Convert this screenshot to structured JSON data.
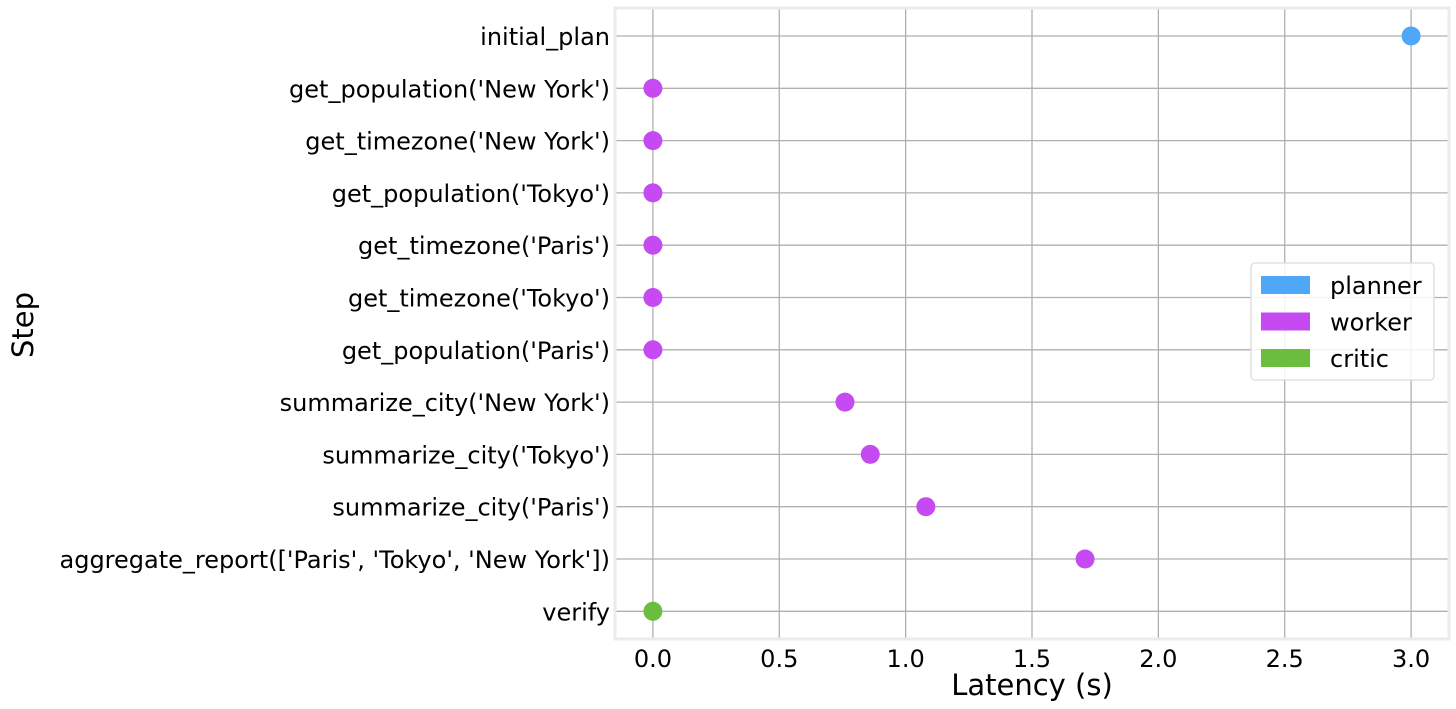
{
  "chart_data": {
    "type": "scatter",
    "xlabel": "Latency (s)",
    "ylabel": "Step",
    "xlim": [
      -0.15,
      3.15
    ],
    "xticks": [
      0.0,
      0.5,
      1.0,
      1.5,
      2.0,
      2.5,
      3.0
    ],
    "xtick_labels": [
      "0.0",
      "0.5",
      "1.0",
      "1.5",
      "2.0",
      "2.5",
      "3.0"
    ],
    "grid": true,
    "legend_position": "center-right",
    "series": [
      {
        "name": "planner",
        "color": "#4EA8F7"
      },
      {
        "name": "worker",
        "color": "#C64AF2"
      },
      {
        "name": "critic",
        "color": "#6ABD3F"
      }
    ],
    "points": [
      {
        "step": "initial_plan",
        "latency": 3.0,
        "series": "planner"
      },
      {
        "step": "get_population('New York')",
        "latency": 0.0,
        "series": "worker"
      },
      {
        "step": "get_timezone('New York')",
        "latency": 0.0,
        "series": "worker"
      },
      {
        "step": "get_population('Tokyo')",
        "latency": 0.0,
        "series": "worker"
      },
      {
        "step": "get_timezone('Paris')",
        "latency": 0.0,
        "series": "worker"
      },
      {
        "step": "get_timezone('Tokyo')",
        "latency": 0.0,
        "series": "worker"
      },
      {
        "step": "get_population('Paris')",
        "latency": 0.0,
        "series": "worker"
      },
      {
        "step": "summarize_city('New York')",
        "latency": 0.76,
        "series": "worker"
      },
      {
        "step": "summarize_city('Tokyo')",
        "latency": 0.86,
        "series": "worker"
      },
      {
        "step": "summarize_city('Paris')",
        "latency": 1.08,
        "series": "worker"
      },
      {
        "step": "aggregate_report(['Paris', 'Tokyo', 'New York'])",
        "latency": 1.71,
        "series": "worker"
      },
      {
        "step": "verify",
        "latency": 0.0,
        "series": "critic"
      }
    ]
  }
}
